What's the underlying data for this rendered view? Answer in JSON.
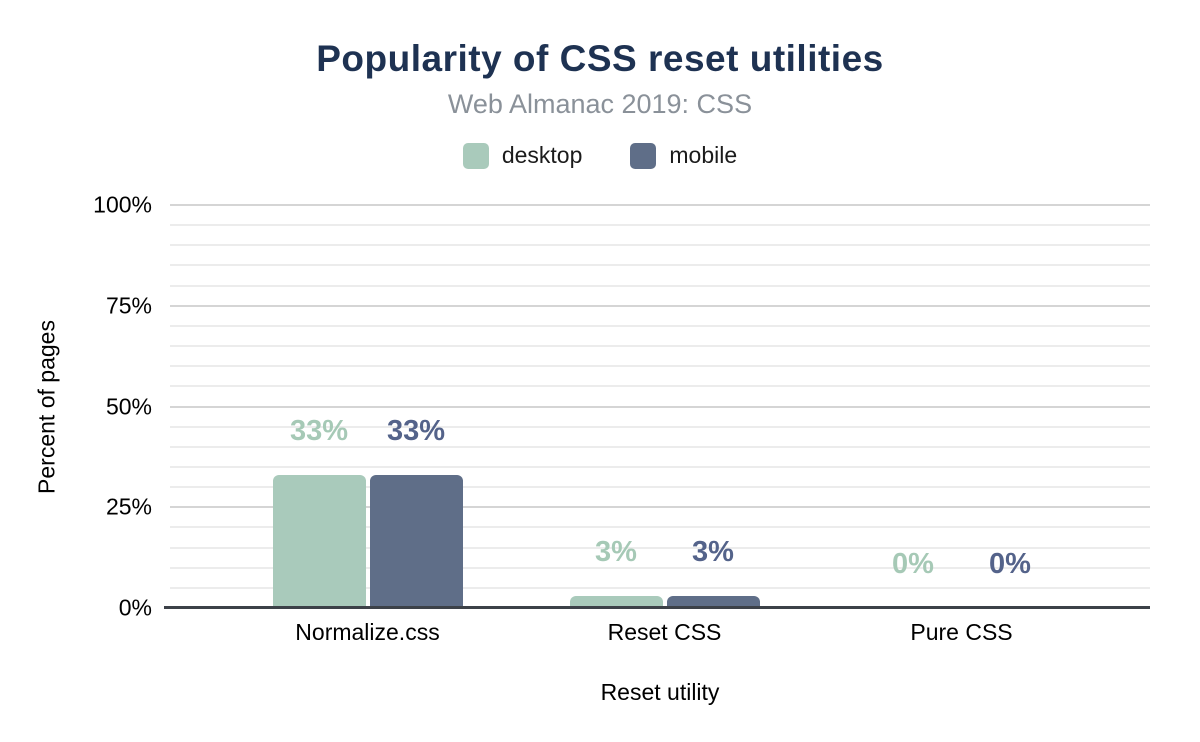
{
  "figure": {
    "title": "Popularity of CSS reset utilities",
    "subtitle": "Web Almanac 2019: CSS"
  },
  "colors": {
    "title": "#1e3252",
    "subtitle": "#8a9199",
    "axis_line": "#3c4148",
    "gridline_major": "#d5d5d5",
    "gridline_minor": "#ececec",
    "tick_text": "#000000",
    "desktop": "#a9cabb",
    "mobile": "#5f6e88"
  },
  "chart_data": {
    "type": "bar",
    "title": "Popularity of CSS reset utilities",
    "subtitle": "Web Almanac 2019: CSS",
    "categories": [
      "Normalize.css",
      "Reset CSS",
      "Pure CSS"
    ],
    "series": [
      {
        "name": "desktop",
        "values": [
          33,
          3,
          0
        ],
        "labels": [
          "33%",
          "3%",
          "0%"
        ],
        "color": "#a9cabb",
        "label_color": "#a6c9b6"
      },
      {
        "name": "mobile",
        "values": [
          33,
          3,
          0
        ],
        "labels": [
          "33%",
          "3%",
          "0%"
        ],
        "color": "#5f6e88",
        "label_color": "#54638a"
      }
    ],
    "xlabel": "Reset utility",
    "ylabel": "Percent of pages",
    "ylim": [
      0,
      100
    ],
    "y_ticks": [
      0,
      25,
      50,
      75,
      100
    ],
    "y_tick_labels": [
      "0%",
      "25%",
      "50%",
      "75%",
      "100%"
    ],
    "y_minor_step": 5,
    "grid": true,
    "legend_position": "top",
    "legend_entries": [
      "desktop",
      "mobile"
    ]
  }
}
